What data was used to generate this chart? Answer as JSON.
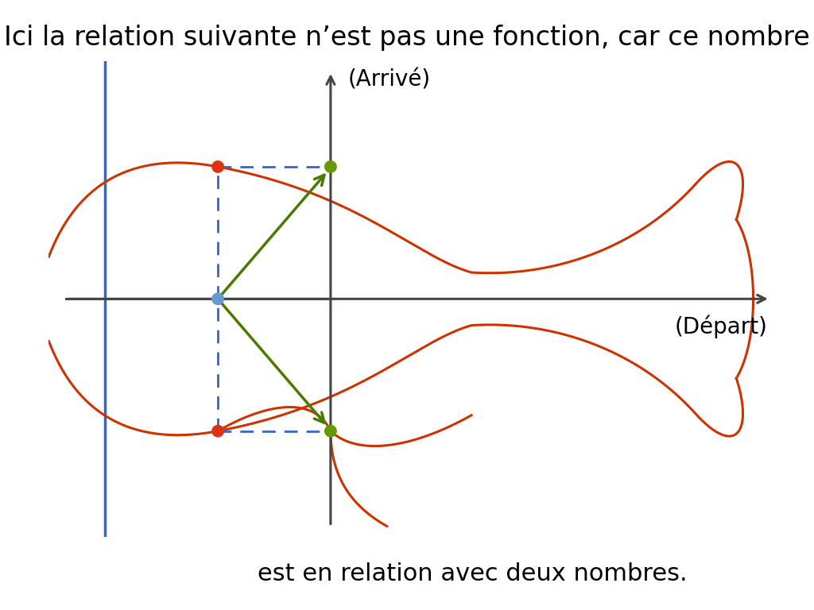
{
  "title": "Ici la relation suivante n’est pas une fonction, car ce nombre",
  "subtitle": "est en relation avec deux nombres.",
  "arrivee_label": "(Arrivé)",
  "depart_label": "(Départ)",
  "background": "#ffffff",
  "title_fontsize": 24,
  "subtitle_fontsize": 22,
  "orange_color": "#CC3300",
  "blue_color": "#3366CC",
  "green_color": "#4A7A00",
  "blue_dot_color": "#6699CC",
  "x_axis_range": [
    -5,
    8
  ],
  "y_axis_range": [
    -4.5,
    4.5
  ],
  "blue_line_x": -4.0,
  "y_axis_x": 0.0,
  "x_axis_y": 0.0,
  "red_dot_upper": [
    -2.0,
    2.5
  ],
  "red_dot_lower": [
    -2.0,
    -2.5
  ],
  "green_dot_upper": [
    0.0,
    2.5
  ],
  "green_dot_lower": [
    0.0,
    -2.5
  ],
  "blue_dot": [
    -2.0,
    0.0
  ]
}
